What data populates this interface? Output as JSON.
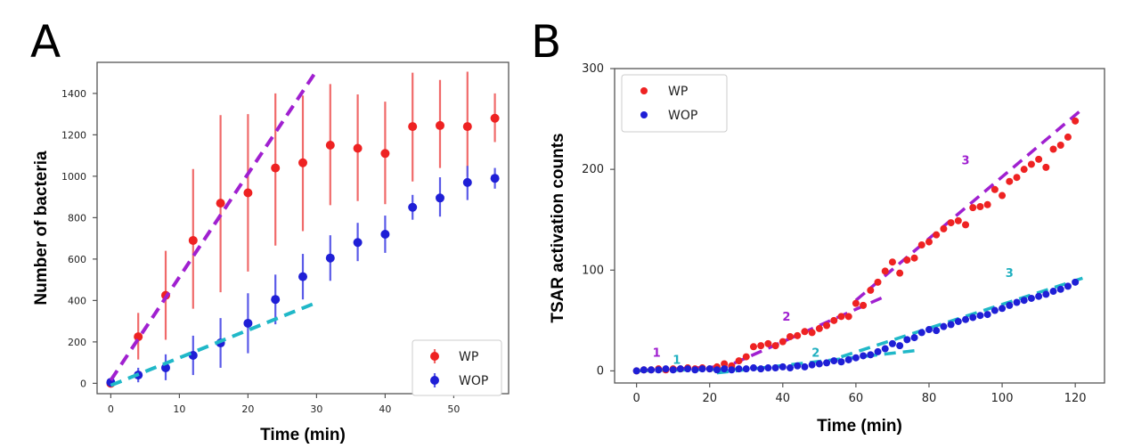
{
  "panels": {
    "a": {
      "letter": "A"
    },
    "b": {
      "letter": "B"
    }
  },
  "colors": {
    "wp": "#ee2222",
    "wp_err": "#f06a6a",
    "wop": "#1f1fd6",
    "wop_err": "#5a5ae8",
    "magenta_fit": "#a020d0",
    "cyan_fit": "#20b8c8",
    "anno_magenta": "#a020d0",
    "anno_cyan": "#20b0c0"
  },
  "chart_data": [
    {
      "panel": "A",
      "type": "scatter",
      "title": "",
      "xlabel": "Time (min)",
      "ylabel": "Number of bacteria",
      "xlim": [
        -2,
        58
      ],
      "ylim": [
        -50,
        1550
      ],
      "xticks": [
        0,
        10,
        20,
        30,
        40,
        50
      ],
      "yticks": [
        0,
        200,
        400,
        600,
        800,
        1000,
        1200,
        1400
      ],
      "grid": false,
      "legend_position": "bottom-right",
      "series": [
        {
          "name": "WP",
          "color_key": "wp",
          "x": [
            0,
            4,
            8,
            12,
            16,
            20,
            24,
            28,
            32,
            36,
            40,
            44,
            48,
            52,
            56
          ],
          "y": [
            0,
            225,
            425,
            690,
            870,
            920,
            1040,
            1065,
            1150,
            1135,
            1110,
            1240,
            1245,
            1240,
            1280
          ],
          "err_low": [
            0,
            110,
            215,
            330,
            430,
            380,
            375,
            330,
            290,
            255,
            245,
            265,
            205,
            240,
            115
          ],
          "err_high": [
            0,
            115,
            215,
            345,
            425,
            380,
            360,
            325,
            295,
            260,
            250,
            260,
            220,
            265,
            120
          ]
        },
        {
          "name": "WOP",
          "color_key": "wop",
          "x": [
            0,
            4,
            8,
            12,
            16,
            20,
            24,
            28,
            32,
            36,
            40,
            44,
            48,
            52,
            56
          ],
          "y": [
            5,
            40,
            75,
            135,
            195,
            290,
            405,
            515,
            605,
            680,
            720,
            850,
            895,
            970,
            990
          ],
          "err_low": [
            5,
            35,
            60,
            95,
            120,
            145,
            120,
            110,
            110,
            90,
            90,
            60,
            90,
            85,
            50
          ],
          "err_high": [
            5,
            35,
            65,
            95,
            120,
            145,
            120,
            110,
            110,
            95,
            90,
            60,
            100,
            80,
            50
          ]
        }
      ],
      "fit_lines": [
        {
          "color_key": "magenta_fit",
          "x": [
            0,
            30
          ],
          "y": [
            15,
            1510
          ]
        },
        {
          "color_key": "cyan_fit",
          "x": [
            0,
            30
          ],
          "y": [
            -10,
            390
          ]
        }
      ]
    },
    {
      "panel": "B",
      "type": "scatter",
      "title": "",
      "xlabel": "Time (min)",
      "ylabel": "TSAR activation counts",
      "xlim": [
        -6,
        128
      ],
      "ylim": [
        -12,
        300
      ],
      "xticks": [
        0,
        20,
        40,
        60,
        80,
        100,
        120
      ],
      "yticks": [
        0,
        100,
        200,
        300
      ],
      "grid": false,
      "legend_position": "top-left",
      "series": [
        {
          "name": "WP",
          "color_key": "wp",
          "x": [
            0,
            2,
            4,
            6,
            8,
            10,
            12,
            14,
            16,
            18,
            20,
            22,
            24,
            26,
            28,
            30,
            32,
            34,
            36,
            38,
            40,
            42,
            44,
            46,
            48,
            50,
            52,
            54,
            56,
            58,
            60,
            62,
            64,
            66,
            68,
            70,
            72,
            74,
            76,
            78,
            80,
            82,
            84,
            86,
            88,
            90,
            92,
            94,
            96,
            98,
            100,
            102,
            104,
            106,
            108,
            110,
            112,
            114,
            116,
            118,
            120
          ],
          "y": [
            0,
            1,
            1,
            2,
            1,
            2,
            2,
            3,
            2,
            3,
            2,
            4,
            7,
            5,
            10,
            14,
            24,
            25,
            27,
            25,
            29,
            34,
            35,
            39,
            38,
            42,
            45,
            50,
            54,
            54,
            67,
            65,
            80,
            88,
            99,
            108,
            97,
            110,
            112,
            125,
            128,
            135,
            141,
            147,
            149,
            145,
            162,
            163,
            165,
            180,
            174,
            188,
            192,
            200,
            205,
            210,
            202,
            220,
            224,
            232,
            248
          ]
        },
        {
          "name": "WOP",
          "color_key": "wop",
          "x": [
            0,
            2,
            4,
            6,
            8,
            10,
            12,
            14,
            16,
            18,
            20,
            22,
            24,
            26,
            28,
            30,
            32,
            34,
            36,
            38,
            40,
            42,
            44,
            46,
            48,
            50,
            52,
            54,
            56,
            58,
            60,
            62,
            64,
            66,
            68,
            70,
            72,
            74,
            76,
            78,
            80,
            82,
            84,
            86,
            88,
            90,
            92,
            94,
            96,
            98,
            100,
            102,
            104,
            106,
            108,
            110,
            112,
            114,
            116,
            118,
            120
          ],
          "y": [
            0,
            1,
            1,
            1,
            2,
            1,
            2,
            2,
            1,
            2,
            2,
            1,
            2,
            1,
            2,
            2,
            3,
            2,
            3,
            3,
            4,
            3,
            5,
            4,
            6,
            7,
            8,
            10,
            9,
            11,
            13,
            15,
            16,
            19,
            22,
            27,
            25,
            31,
            33,
            38,
            41,
            40,
            44,
            46,
            49,
            51,
            53,
            55,
            56,
            60,
            62,
            65,
            68,
            70,
            72,
            74,
            76,
            79,
            81,
            84,
            88
          ]
        }
      ],
      "fit_lines": [
        {
          "color_key": "magenta_fit",
          "x": [
            0,
            22
          ],
          "y": [
            0,
            4
          ]
        },
        {
          "color_key": "magenta_fit",
          "x": [
            22,
            68
          ],
          "y": [
            0,
            74
          ]
        },
        {
          "color_key": "magenta_fit",
          "x": [
            60,
            122
          ],
          "y": [
            70,
            260
          ]
        },
        {
          "color_key": "cyan_fit",
          "x": [
            0,
            30
          ],
          "y": [
            0,
            2
          ]
        },
        {
          "color_key": "cyan_fit",
          "x": [
            22,
            76
          ],
          "y": [
            -2,
            20
          ]
        },
        {
          "color_key": "cyan_fit",
          "x": [
            56,
            122
          ],
          "y": [
            14,
            92
          ]
        }
      ],
      "annotations": [
        {
          "text": "1",
          "x": 5.5,
          "y": 14,
          "color_key": "anno_magenta"
        },
        {
          "text": "1",
          "x": 11,
          "y": 7,
          "color_key": "anno_cyan"
        },
        {
          "text": "2",
          "x": 41,
          "y": 50,
          "color_key": "anno_magenta"
        },
        {
          "text": "2",
          "x": 49,
          "y": 14,
          "color_key": "anno_cyan"
        },
        {
          "text": "3",
          "x": 90,
          "y": 205,
          "color_key": "anno_magenta"
        },
        {
          "text": "3",
          "x": 102,
          "y": 93,
          "color_key": "anno_cyan"
        }
      ]
    }
  ]
}
